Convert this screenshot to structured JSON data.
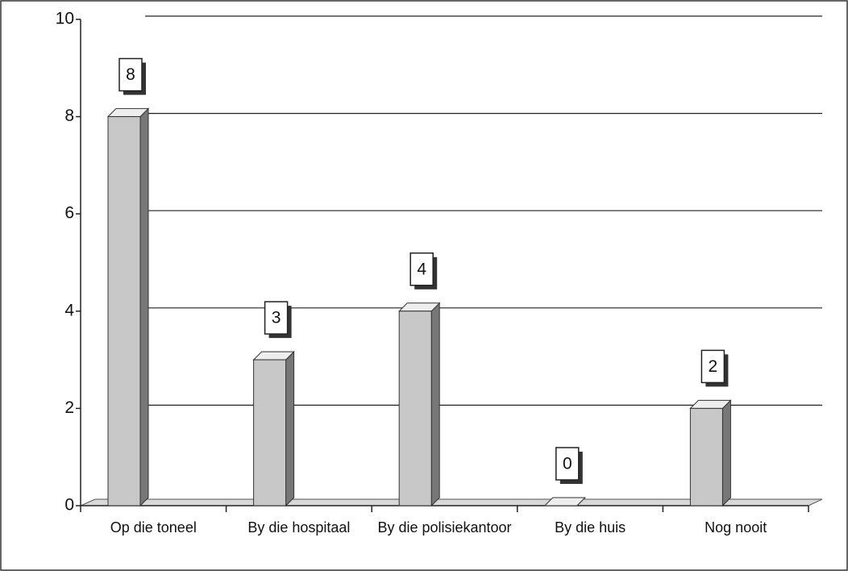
{
  "chart_data": {
    "type": "bar",
    "categories": [
      "Op die toneel",
      "By die hospitaal",
      "By die polisiekantoor",
      "By die huis",
      "Nog nooit"
    ],
    "values": [
      8,
      3,
      4,
      0,
      2
    ],
    "color": "#c8c8c8",
    "ylim": [
      0,
      10
    ],
    "yticks": [
      0,
      2,
      4,
      6,
      8,
      10
    ],
    "grid": true
  }
}
